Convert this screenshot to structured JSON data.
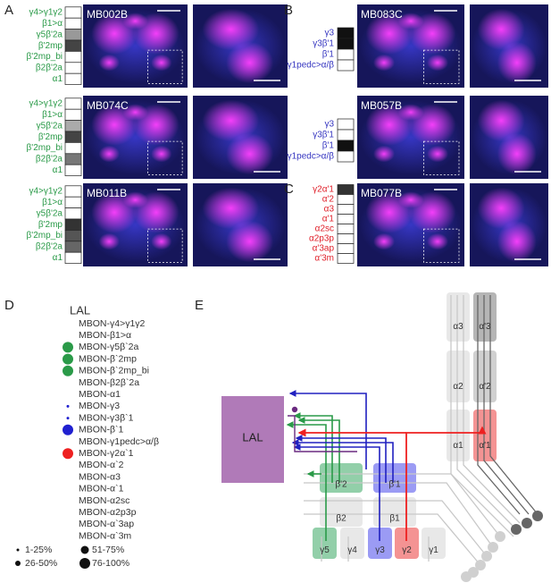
{
  "panels": [
    {
      "label": "A",
      "color": "#2a9a48",
      "rows": [
        {
          "name": "MB002B",
          "labels": [
            "γ4>γ1γ2",
            "β1>α",
            "γ5β'2a",
            "β'2mp",
            "β'2mp_bi",
            "β2β'2a",
            "α1"
          ],
          "shades": [
            "#ffffff",
            "#ffffff",
            "#999999",
            "#444444",
            "#ffffff",
            "#ffffff",
            "#ffffff"
          ]
        },
        {
          "name": "MB074C",
          "labels": [
            "γ4>γ1γ2",
            "β1>α",
            "γ5β'2a",
            "β'2mp",
            "β'2mp_bi",
            "β2β'2a",
            "α1"
          ],
          "shades": [
            "#ffffff",
            "#ffffff",
            "#aaaaaa",
            "#444444",
            "#ffffff",
            "#777777",
            "#ffffff"
          ]
        },
        {
          "name": "MB011B",
          "labels": [
            "γ4>γ1γ2",
            "β1>α",
            "γ5β'2a",
            "β'2mp",
            "β'2mp_bi",
            "β2β'2a",
            "α1"
          ],
          "shades": [
            "#ffffff",
            "#ffffff",
            "#ffffff",
            "#333333",
            "#555555",
            "#666666",
            "#ffffff"
          ]
        }
      ]
    },
    {
      "label": "B",
      "color": "#3535c0",
      "rows": [
        {
          "name": "MB083C",
          "labels": [
            "γ3",
            "γ3β'1",
            "β'1",
            "γ1pedc>α/β"
          ],
          "shades": [
            "#111111",
            "#111111",
            "#ffffff",
            "#ffffff"
          ]
        },
        {
          "name": "MB057B",
          "labels": [
            "γ3",
            "γ3β'1",
            "β'1",
            "γ1pedc>α/β"
          ],
          "shades": [
            "#ffffff",
            "#ffffff",
            "#111111",
            "#ffffff"
          ]
        }
      ]
    },
    {
      "label": "C",
      "color": "#e0202a",
      "rows": [
        {
          "name": "MB077B",
          "labels": [
            "γ2α'1",
            "α'2",
            "α3",
            "α'1",
            "α2sc",
            "α2p3p",
            "α'3ap",
            "α'3m"
          ],
          "shades": [
            "#333333",
            "#ffffff",
            "#ffffff",
            "#ffffff",
            "#ffffff",
            "#ffffff",
            "#ffffff",
            "#ffffff"
          ]
        }
      ]
    }
  ],
  "panel_d": {
    "label": "D",
    "title": "LAL",
    "items": [
      {
        "name": "MBON-γ4>γ1γ2",
        "level": null,
        "color": null
      },
      {
        "name": "MBON-β1>α",
        "level": null,
        "color": null
      },
      {
        "name": "MBON-γ5β`2a",
        "level": 4,
        "color": "#2a9a48"
      },
      {
        "name": "MBON-β`2mp",
        "level": 4,
        "color": "#2a9a48"
      },
      {
        "name": "MBON-β`2mp_bi",
        "level": 4,
        "color": "#2a9a48"
      },
      {
        "name": "MBON-β2β`2a",
        "level": null,
        "color": null
      },
      {
        "name": "MBON-α1",
        "level": null,
        "color": null
      },
      {
        "name": "MBON-γ3",
        "level": 1,
        "color": "#2020d0"
      },
      {
        "name": "MBON-γ3β`1",
        "level": 1,
        "color": "#2020d0"
      },
      {
        "name": "MBON-β`1",
        "level": 4,
        "color": "#2020d0"
      },
      {
        "name": "MBON-γ1pedc>α/β",
        "level": null,
        "color": null
      },
      {
        "name": "MBON-γ2α`1",
        "level": 4,
        "color": "#ee2020"
      },
      {
        "name": "MBON-α`2",
        "level": null,
        "color": null
      },
      {
        "name": "MBON-α3",
        "level": null,
        "color": null
      },
      {
        "name": "MBON-α`1",
        "level": null,
        "color": null
      },
      {
        "name": "MBON-α2sc",
        "level": null,
        "color": null
      },
      {
        "name": "MBON-α2p3p",
        "level": null,
        "color": null
      },
      {
        "name": "MBON-α`3ap",
        "level": null,
        "color": null
      },
      {
        "name": "MBON-α`3m",
        "level": null,
        "color": null
      }
    ],
    "legend": [
      "1-25%",
      "26-50%",
      "51-75%",
      "76-100%"
    ]
  },
  "panel_e": {
    "label": "E",
    "lal": "LAL",
    "compartments": [
      {
        "name": "α3",
        "color": "#e4e4e4"
      },
      {
        "name": "α'3",
        "color": "#a8a8a8"
      },
      {
        "name": "α2",
        "color": "#e4e4e4"
      },
      {
        "name": "α'2",
        "color": "#c8c8c8"
      },
      {
        "name": "α1",
        "color": "#e4e4e4"
      },
      {
        "name": "α'1",
        "color": "#f28080"
      },
      {
        "name": "β'2",
        "color": "#7fc79a"
      },
      {
        "name": "β'1",
        "color": "#8a8af2"
      },
      {
        "name": "β2",
        "color": "#e4e4e4"
      },
      {
        "name": "β1",
        "color": "#e4e4e4"
      },
      {
        "name": "γ5",
        "color": "#7fc79a"
      },
      {
        "name": "γ4",
        "color": "#e4e4e4"
      },
      {
        "name": "γ3",
        "color": "#8a8af2"
      },
      {
        "name": "γ2",
        "color": "#f28080"
      },
      {
        "name": "γ1",
        "color": "#e4e4e4"
      }
    ]
  }
}
